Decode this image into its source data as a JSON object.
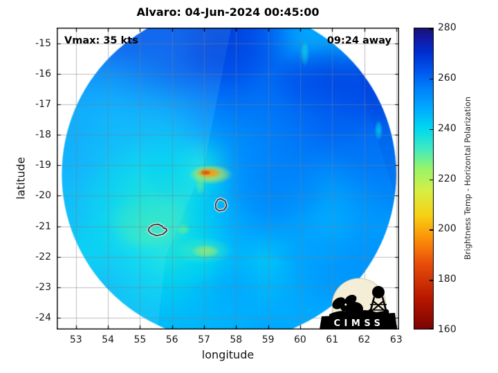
{
  "figure": {
    "background": "#ffffff",
    "logo": {
      "text": "CIMSS",
      "circle_color": "#f4eed6",
      "silhouette_color": "#000000"
    }
  },
  "chart_data": {
    "type": "heatmap",
    "title": "Alvaro: 04-Jun-2024 00:45:00",
    "xlabel": "longitude",
    "ylabel": "latitude",
    "xlim": [
      52.4,
      63.09
    ],
    "ylim": [
      -24.39,
      -14.48
    ],
    "xticks": [
      53,
      54,
      55,
      56,
      57,
      58,
      59,
      60,
      61,
      62,
      63
    ],
    "yticks": [
      -15,
      -16,
      -17,
      -18,
      -19,
      -20,
      -21,
      -22,
      -23,
      -24
    ],
    "grid": true,
    "grid_color": "rgba(125,125,125,0.5)",
    "annotations": [
      {
        "text": "Vmax: 35 kts",
        "pos": "top-left"
      },
      {
        "text": "09:24 away",
        "pos": "top-right"
      }
    ],
    "colorbar": {
      "label": "Brightness Temp - Horizontal Polarization",
      "min": 160,
      "max": 280,
      "ticks": [
        160,
        180,
        200,
        220,
        240,
        260,
        280
      ],
      "colormap": [
        [
          160,
          "#7a0403"
        ],
        [
          172,
          "#b61700"
        ],
        [
          186,
          "#e84d0a"
        ],
        [
          196,
          "#fb9009"
        ],
        [
          205,
          "#f7cf12"
        ],
        [
          215,
          "#d7ee44"
        ],
        [
          224,
          "#97f468"
        ],
        [
          232,
          "#3fe9c2"
        ],
        [
          240,
          "#00d8f0"
        ],
        [
          248,
          "#00aaff"
        ],
        [
          256,
          "#0080fa"
        ],
        [
          263,
          "#0055ee"
        ],
        [
          270,
          "#0030cf"
        ],
        [
          276,
          "#1418a6"
        ],
        [
          280,
          "#18136e"
        ]
      ]
    },
    "swath": {
      "center_lon": 57.78,
      "center_lat": -19.29,
      "radius_lon_deg": 5.22
    },
    "grid_lons": [
      53,
      54,
      55,
      56,
      57,
      58,
      59,
      60,
      61,
      62,
      63
    ],
    "grid_lats": [
      -15,
      -16,
      -17,
      -18,
      -19,
      -20,
      -21,
      -22,
      -23,
      -24
    ],
    "values": [
      [
        null,
        null,
        null,
        263,
        266,
        266,
        261,
        250,
        null,
        null,
        null
      ],
      [
        null,
        255,
        258,
        261,
        263,
        263,
        260,
        262,
        264,
        null,
        null
      ],
      [
        250,
        249,
        250,
        252,
        256,
        258,
        258,
        260,
        262,
        264,
        null
      ],
      [
        249,
        247,
        246,
        246,
        250,
        254,
        256,
        258,
        260,
        259,
        null
      ],
      [
        248,
        245,
        242,
        240,
        238,
        252,
        255,
        256,
        255,
        257,
        257
      ],
      [
        246,
        243,
        237,
        236,
        242,
        250,
        253,
        252,
        250,
        253,
        255
      ],
      [
        245,
        241,
        234,
        236,
        242,
        248,
        251,
        250,
        248,
        251,
        null
      ],
      [
        null,
        243,
        240,
        237,
        240,
        246,
        244,
        249,
        251,
        252,
        null
      ],
      [
        null,
        245,
        243,
        242,
        245,
        248,
        246,
        249,
        251,
        null,
        null
      ],
      [
        null,
        null,
        245,
        245,
        246,
        247,
        248,
        null,
        null,
        null,
        null
      ]
    ],
    "features": {
      "blobs": [
        {
          "lon": 57.2,
          "lat": -19.3,
          "rx": 0.7,
          "ry": 0.33,
          "value": 214,
          "alpha": 0.85
        },
        {
          "lon": 57.15,
          "lat": -19.25,
          "rx": 0.42,
          "ry": 0.18,
          "value": 196,
          "alpha": 0.95
        },
        {
          "lon": 57.05,
          "lat": -19.24,
          "rx": 0.18,
          "ry": 0.09,
          "value": 183,
          "alpha": 0.9
        },
        {
          "lon": 56.88,
          "lat": -19.62,
          "rx": 0.16,
          "ry": 0.35,
          "value": 226,
          "alpha": 0.55
        },
        {
          "lon": 57.05,
          "lat": -21.82,
          "rx": 0.45,
          "ry": 0.22,
          "value": 213,
          "alpha": 0.8
        },
        {
          "lon": 57.0,
          "lat": -21.8,
          "rx": 0.9,
          "ry": 0.45,
          "value": 230,
          "alpha": 0.5
        },
        {
          "lon": 56.35,
          "lat": -21.1,
          "rx": 0.22,
          "ry": 0.18,
          "value": 228,
          "alpha": 0.7
        },
        {
          "lon": 55.3,
          "lat": -20.8,
          "rx": 1.3,
          "ry": 1.0,
          "value": 230,
          "alpha": 0.5
        },
        {
          "lon": 54.9,
          "lat": -20.0,
          "rx": 1.8,
          "ry": 1.5,
          "value": 239,
          "alpha": 0.45
        },
        {
          "lon": 55.9,
          "lat": -19.0,
          "rx": 0.9,
          "ry": 1.3,
          "value": 243,
          "alpha": 0.4
        },
        {
          "lon": 60.15,
          "lat": -15.33,
          "rx": 0.14,
          "ry": 0.42,
          "value": 238,
          "alpha": 0.8
        },
        {
          "lon": 62.45,
          "lat": -17.85,
          "rx": 0.13,
          "ry": 0.33,
          "value": 240,
          "alpha": 0.75
        },
        {
          "lon": 60.3,
          "lat": -21.95,
          "rx": 1.4,
          "ry": 0.35,
          "value": 249,
          "alpha": 0.5
        },
        {
          "lon": 58.95,
          "lat": -22.15,
          "rx": 0.55,
          "ry": 0.28,
          "value": 244,
          "alpha": 0.6
        },
        {
          "lon": 60.8,
          "lat": -16.2,
          "rx": 1.6,
          "ry": 1.2,
          "value": 265,
          "alpha": 0.4
        },
        {
          "lon": 57.8,
          "lat": -15.5,
          "rx": 1.5,
          "ry": 0.8,
          "value": 265,
          "alpha": 0.35
        },
        {
          "lon": 59.3,
          "lat": -19.9,
          "rx": 1.7,
          "ry": 1.0,
          "value": 257,
          "alpha": 0.3
        },
        {
          "lon": 56.6,
          "lat": -22.5,
          "rx": 0.8,
          "ry": 0.4,
          "value": 241,
          "alpha": 0.45
        },
        {
          "lon": 53.6,
          "lat": -21.5,
          "rx": 0.8,
          "ry": 0.9,
          "value": 240,
          "alpha": 0.4
        }
      ],
      "contours": [
        {
          "points": [
            [
              57.52,
              -20.1
            ],
            [
              57.66,
              -20.17
            ],
            [
              57.71,
              -20.33
            ],
            [
              57.63,
              -20.46
            ],
            [
              57.47,
              -20.5
            ],
            [
              57.37,
              -20.42
            ],
            [
              57.36,
              -20.26
            ],
            [
              57.44,
              -20.12
            ]
          ]
        },
        {
          "points": [
            [
              55.28,
              -21.06
            ],
            [
              55.4,
              -20.96
            ],
            [
              55.56,
              -20.93
            ],
            [
              55.7,
              -21.0
            ],
            [
              55.73,
              -21.06
            ],
            [
              55.82,
              -21.08
            ],
            [
              55.84,
              -21.15
            ],
            [
              55.72,
              -21.26
            ],
            [
              55.52,
              -21.31
            ],
            [
              55.34,
              -21.24
            ],
            [
              55.26,
              -21.14
            ]
          ]
        }
      ],
      "seams": [
        {
          "polygon": [
            [
              57.85,
              -14.48
            ],
            [
              57.0,
              -19.0
            ],
            [
              55.8,
              -22.0
            ],
            [
              55.55,
              -24.39
            ],
            [
              52.4,
              -24.39
            ],
            [
              52.4,
              -14.48
            ]
          ],
          "fill": "rgba(150,255,240,0.12)"
        },
        {
          "polygon": [
            [
              61.4,
              -14.48
            ],
            [
              62.4,
              -18.1
            ],
            [
              63.09,
              -20.4
            ],
            [
              63.09,
              -14.48
            ]
          ],
          "fill": "rgba(0,10,150,0.07)"
        }
      ],
      "contour_stroke_outer": "#ffffff",
      "contour_stroke_inner": "#000000"
    }
  }
}
